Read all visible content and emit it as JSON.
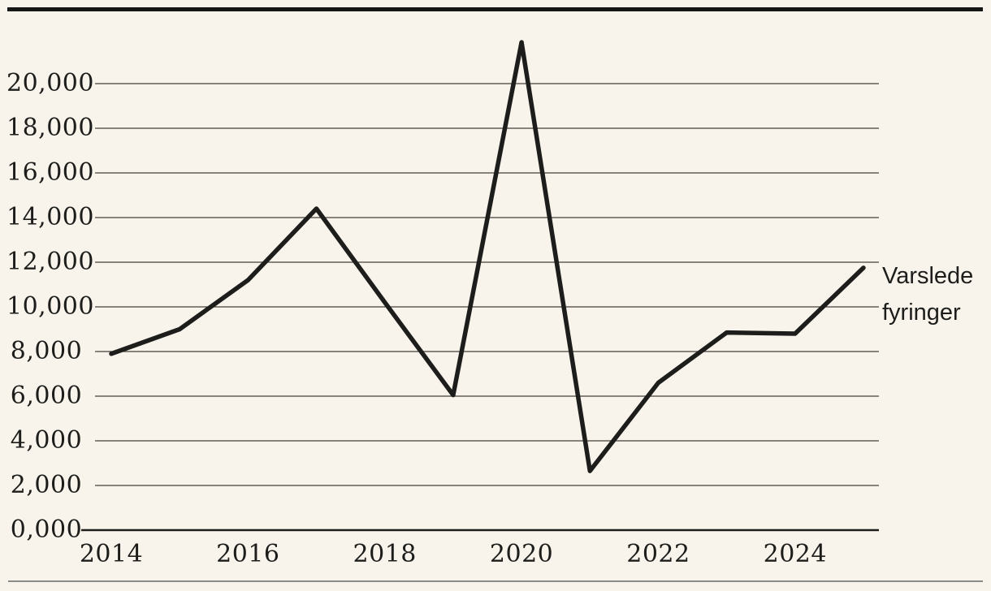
{
  "page": {
    "background_color": "#f8f4ec",
    "top_rule_color": "#161616",
    "bottom_rule_color": "#8b8b87",
    "text_color": "#1d1d1b"
  },
  "chart_data": {
    "type": "line",
    "title": "",
    "xlabel": "",
    "ylabel": "",
    "x": [
      2014,
      2015,
      2016,
      2017,
      2018,
      2019,
      2020,
      2021,
      2022,
      2023,
      2024,
      2025
    ],
    "series": [
      {
        "name": "Varslede fyringer",
        "values": [
          7900,
          9000,
          11200,
          14400,
          10200,
          6050,
          21850,
          2650,
          6600,
          8850,
          8800,
          11750
        ]
      }
    ],
    "series_label": "Varslede fyringer",
    "y_ticks": [
      0,
      2000,
      4000,
      6000,
      8000,
      10000,
      12000,
      14000,
      16000,
      18000,
      20000
    ],
    "y_tick_labels": [
      "0,000",
      "2,000",
      "4,000",
      "6,000",
      "8,000",
      "10,000",
      "12,000",
      "14,000",
      "16,000",
      "18,000",
      "20,000"
    ],
    "x_tick_years": [
      2014,
      2016,
      2018,
      2020,
      2022,
      2024
    ],
    "x_tick_labels": [
      "2014",
      "2016",
      "2018",
      "2020",
      "2022",
      "2024"
    ],
    "ylim": [
      0,
      22000
    ],
    "grid": true,
    "gridline_color": "#45413b",
    "axis_color": "#1d1d1b",
    "line_color": "#1d1d1b",
    "legend_position": "right-of-line-end"
  }
}
